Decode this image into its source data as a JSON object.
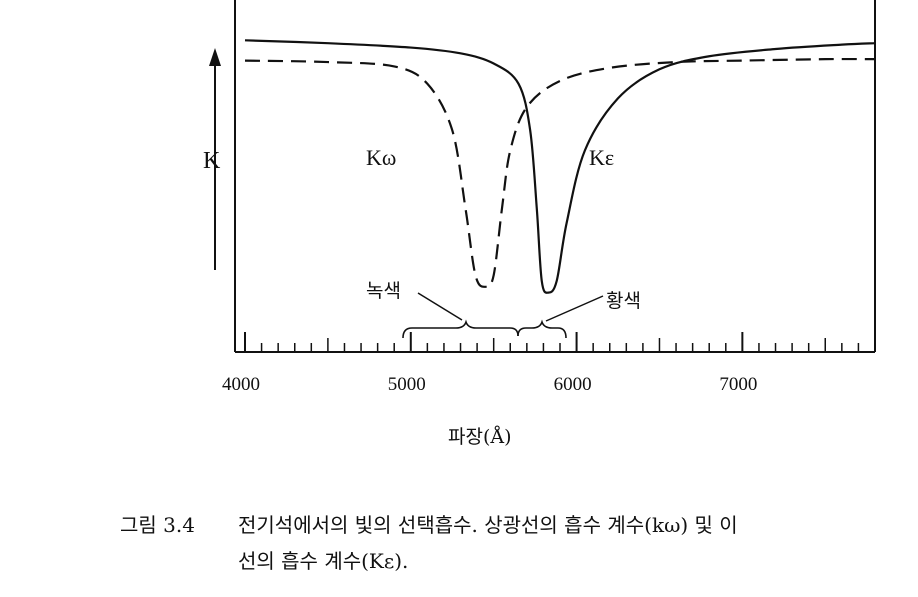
{
  "chart_data": {
    "type": "line",
    "xlabel": "파장(Å)",
    "ylabel": "K",
    "xlim": [
      4000,
      7800
    ],
    "x_ticks": [
      4000,
      5000,
      6000,
      7000
    ],
    "x_tick_labels": [
      "4000",
      "5000",
      "6000",
      "7000"
    ],
    "grid": false,
    "series": [
      {
        "name": "Kω",
        "style": "dashed",
        "points": [
          [
            4000,
            0.86
          ],
          [
            4500,
            0.855
          ],
          [
            4900,
            0.84
          ],
          [
            5100,
            0.78
          ],
          [
            5250,
            0.62
          ],
          [
            5330,
            0.35
          ],
          [
            5390,
            0.12
          ],
          [
            5450,
            0.08
          ],
          [
            5500,
            0.12
          ],
          [
            5550,
            0.35
          ],
          [
            5600,
            0.55
          ],
          [
            5700,
            0.7
          ],
          [
            5900,
            0.79
          ],
          [
            6200,
            0.835
          ],
          [
            6600,
            0.855
          ],
          [
            7000,
            0.86
          ],
          [
            7500,
            0.865
          ],
          [
            7800,
            0.865
          ]
        ]
      },
      {
        "name": "Kε",
        "style": "solid",
        "points": [
          [
            4000,
            0.93
          ],
          [
            4500,
            0.92
          ],
          [
            5000,
            0.905
          ],
          [
            5300,
            0.885
          ],
          [
            5500,
            0.85
          ],
          [
            5650,
            0.78
          ],
          [
            5720,
            0.62
          ],
          [
            5760,
            0.35
          ],
          [
            5790,
            0.1
          ],
          [
            5830,
            0.06
          ],
          [
            5880,
            0.1
          ],
          [
            5940,
            0.3
          ],
          [
            6050,
            0.55
          ],
          [
            6250,
            0.73
          ],
          [
            6500,
            0.83
          ],
          [
            6800,
            0.875
          ],
          [
            7200,
            0.9
          ],
          [
            7600,
            0.915
          ],
          [
            7800,
            0.92
          ]
        ]
      }
    ],
    "annotations": [
      "녹색",
      "황색"
    ]
  },
  "caption": {
    "number": "그림 3.4",
    "line1": "전기석에서의 빛의 선택흡수. 상광선의 흡수 계수(kω) 및 이",
    "line2": "선의 흡수 계수(Kε)."
  }
}
